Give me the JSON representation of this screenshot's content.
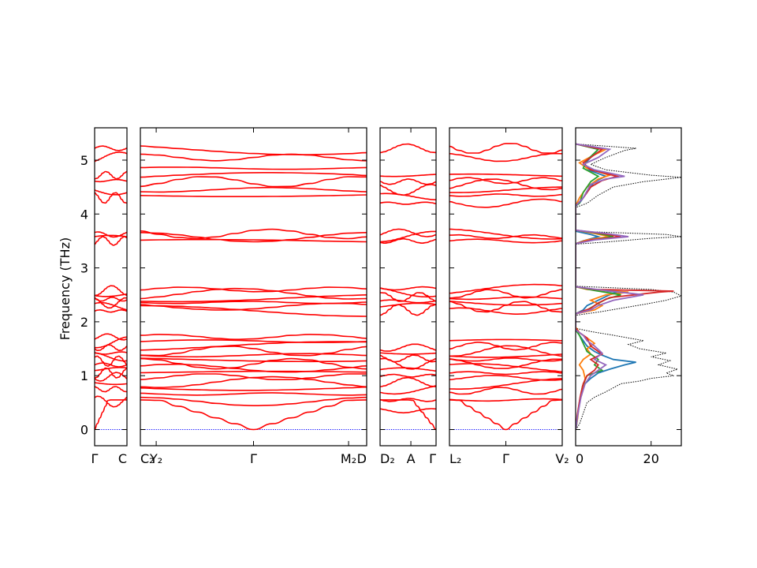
{
  "chart_data": {
    "type": "line",
    "ylabel": "Frequency (THz)",
    "ylim": [
      -0.3,
      5.6
    ],
    "yticks": [
      0,
      1,
      2,
      3,
      4,
      5
    ],
    "band_color": "#ff0000",
    "zero_line_color": "#0000ff",
    "segments": [
      {
        "labels": [
          "Γ",
          "C"
        ],
        "x_ticks": [
          0,
          1
        ],
        "band_levels": [
          0.0,
          0.52,
          0.75,
          0.86,
          0.98,
          1.05,
          1.12,
          1.2,
          1.27,
          1.35,
          1.42,
          1.52,
          1.62,
          1.72,
          2.2,
          2.28,
          2.35,
          2.42,
          2.5,
          2.58,
          3.5,
          3.58,
          3.62,
          4.3,
          4.42,
          4.62,
          4.72,
          5.05,
          5.22
        ]
      },
      {
        "labels": [
          "C₂",
          "Y₂",
          "Γ",
          "M₂",
          "D"
        ],
        "x_ticks": [
          0,
          0.07,
          0.5,
          0.92,
          1
        ],
        "band_levels": [
          0.0,
          0.52,
          0.66,
          0.78,
          0.88,
          0.98,
          1.06,
          1.14,
          1.22,
          1.3,
          1.38,
          1.46,
          1.55,
          1.64,
          1.72,
          2.2,
          2.28,
          2.36,
          2.44,
          2.52,
          2.6,
          3.5,
          3.57,
          3.63,
          4.35,
          4.45,
          4.6,
          4.7,
          4.85,
          5.05,
          5.2
        ]
      },
      {
        "labels": [
          "D₂",
          "A",
          "Γ"
        ],
        "x_ticks": [
          0,
          0.55,
          1
        ],
        "band_levels": [
          0.0,
          0.35,
          0.55,
          0.75,
          0.88,
          1.0,
          1.1,
          1.22,
          1.32,
          1.42,
          1.52,
          2.22,
          2.3,
          2.38,
          2.46,
          2.55,
          2.62,
          3.5,
          3.58,
          3.65,
          4.2,
          4.32,
          4.45,
          4.6,
          4.72,
          5.22
        ]
      },
      {
        "labels": [
          "L₂",
          "Γ",
          "V₂"
        ],
        "x_ticks": [
          0,
          0.5,
          1
        ],
        "band_levels": [
          0.0,
          0.55,
          0.72,
          0.85,
          0.96,
          1.05,
          1.14,
          1.22,
          1.3,
          1.38,
          1.46,
          1.55,
          1.65,
          2.2,
          2.28,
          2.36,
          2.44,
          2.52,
          2.6,
          3.5,
          3.58,
          3.63,
          4.2,
          4.35,
          4.45,
          4.55,
          4.62,
          4.72,
          5.05,
          5.22
        ]
      }
    ],
    "dos": {
      "xlim": [
        0,
        28
      ],
      "xticks": [
        0,
        20
      ],
      "series": [
        {
          "color": "#1f77b4",
          "points": [
            [
              0,
              0
            ],
            [
              0.3,
              0.1
            ],
            [
              0.6,
              0.3
            ],
            [
              1,
              0.5
            ],
            [
              1.5,
              0.7
            ],
            [
              2.5,
              0.85
            ],
            [
              4,
              0.95
            ],
            [
              6,
              1.05
            ],
            [
              9,
              1.12
            ],
            [
              13,
              1.2
            ],
            [
              16,
              1.25
            ],
            [
              10,
              1.3
            ],
            [
              7,
              1.38
            ],
            [
              5,
              1.45
            ],
            [
              3,
              1.55
            ],
            [
              2,
              1.65
            ],
            [
              1,
              1.75
            ],
            [
              0,
              1.85
            ],
            [
              0,
              2.15
            ],
            [
              2,
              2.22
            ],
            [
              3,
              2.3
            ],
            [
              6,
              2.4
            ],
            [
              9,
              2.5
            ],
            [
              11,
              2.55
            ],
            [
              4,
              2.6
            ],
            [
              0,
              2.65
            ],
            [
              0,
              3.45
            ],
            [
              2,
              3.5
            ],
            [
              6,
              3.58
            ],
            [
              4,
              3.62
            ],
            [
              0,
              3.68
            ],
            [
              0,
              4.15
            ],
            [
              1,
              4.2
            ],
            [
              3,
              4.4
            ],
            [
              5,
              4.6
            ],
            [
              8,
              4.7
            ],
            [
              4,
              4.8
            ],
            [
              2,
              4.9
            ],
            [
              4,
              5.05
            ],
            [
              6,
              5.2
            ],
            [
              0,
              5.3
            ]
          ]
        },
        {
          "color": "#ff7f0e",
          "points": [
            [
              0,
              0
            ],
            [
              0.5,
              0.2
            ],
            [
              1,
              0.5
            ],
            [
              2,
              0.75
            ],
            [
              2.5,
              0.95
            ],
            [
              2,
              1.1
            ],
            [
              1,
              1.2
            ],
            [
              2,
              1.3
            ],
            [
              4,
              1.4
            ],
            [
              3,
              1.5
            ],
            [
              5,
              1.6
            ],
            [
              3,
              1.7
            ],
            [
              1,
              1.8
            ],
            [
              0,
              1.9
            ],
            [
              0,
              2.15
            ],
            [
              5,
              2.22
            ],
            [
              7,
              2.3
            ],
            [
              4,
              2.4
            ],
            [
              8,
              2.5
            ],
            [
              14,
              2.55
            ],
            [
              3,
              2.6
            ],
            [
              0,
              2.65
            ],
            [
              0,
              3.45
            ],
            [
              3,
              3.52
            ],
            [
              9,
              3.58
            ],
            [
              5,
              3.64
            ],
            [
              0,
              3.7
            ],
            [
              0,
              4.15
            ],
            [
              1,
              4.3
            ],
            [
              3,
              4.5
            ],
            [
              6,
              4.65
            ],
            [
              9,
              4.72
            ],
            [
              3,
              4.85
            ],
            [
              1,
              4.95
            ],
            [
              5,
              5.1
            ],
            [
              8,
              5.2
            ],
            [
              0,
              5.3
            ]
          ]
        },
        {
          "color": "#2ca02c",
          "points": [
            [
              0,
              0
            ],
            [
              0.4,
              0.2
            ],
            [
              1,
              0.5
            ],
            [
              1.8,
              0.8
            ],
            [
              3,
              1.0
            ],
            [
              5,
              1.05
            ],
            [
              7,
              1.1
            ],
            [
              5,
              1.2
            ],
            [
              6,
              1.3
            ],
            [
              3,
              1.45
            ],
            [
              2,
              1.6
            ],
            [
              1,
              1.75
            ],
            [
              0,
              1.85
            ],
            [
              0,
              2.15
            ],
            [
              3,
              2.22
            ],
            [
              5,
              2.3
            ],
            [
              8,
              2.42
            ],
            [
              12,
              2.5
            ],
            [
              5,
              2.58
            ],
            [
              0,
              2.65
            ],
            [
              0,
              3.45
            ],
            [
              3,
              3.5
            ],
            [
              10,
              3.58
            ],
            [
              6,
              3.64
            ],
            [
              0,
              3.7
            ],
            [
              0,
              4.15
            ],
            [
              1,
              4.2
            ],
            [
              2,
              4.4
            ],
            [
              4,
              4.6
            ],
            [
              6,
              4.7
            ],
            [
              2,
              4.85
            ],
            [
              3,
              5.0
            ],
            [
              6,
              5.2
            ],
            [
              0,
              5.3
            ]
          ]
        },
        {
          "color": "#d62728",
          "points": [
            [
              0,
              0
            ],
            [
              0.4,
              0.25
            ],
            [
              1.2,
              0.6
            ],
            [
              2,
              0.85
            ],
            [
              3,
              1.0
            ],
            [
              5,
              1.1
            ],
            [
              6,
              1.2
            ],
            [
              4,
              1.3
            ],
            [
              7,
              1.4
            ],
            [
              4,
              1.55
            ],
            [
              3,
              1.7
            ],
            [
              1,
              1.8
            ],
            [
              0,
              1.88
            ],
            [
              0,
              2.15
            ],
            [
              4,
              2.25
            ],
            [
              6,
              2.35
            ],
            [
              9,
              2.45
            ],
            [
              22,
              2.55
            ],
            [
              26,
              2.57
            ],
            [
              5,
              2.6
            ],
            [
              0,
              2.65
            ],
            [
              0,
              3.45
            ],
            [
              4,
              3.52
            ],
            [
              12,
              3.58
            ],
            [
              7,
              3.64
            ],
            [
              0,
              3.7
            ],
            [
              0,
              4.15
            ],
            [
              2,
              4.3
            ],
            [
              4,
              4.5
            ],
            [
              7,
              4.62
            ],
            [
              11,
              4.7
            ],
            [
              4,
              4.82
            ],
            [
              2,
              4.95
            ],
            [
              5,
              5.1
            ],
            [
              7,
              5.2
            ],
            [
              0,
              5.3
            ]
          ]
        },
        {
          "color": "#9467bd",
          "points": [
            [
              0,
              0
            ],
            [
              0.5,
              0.25
            ],
            [
              1.4,
              0.6
            ],
            [
              2.5,
              0.85
            ],
            [
              4,
              1.0
            ],
            [
              6,
              1.1
            ],
            [
              8,
              1.2
            ],
            [
              5,
              1.3
            ],
            [
              7,
              1.42
            ],
            [
              5,
              1.55
            ],
            [
              3,
              1.65
            ],
            [
              2,
              1.75
            ],
            [
              0,
              1.85
            ],
            [
              0,
              2.15
            ],
            [
              4,
              2.22
            ],
            [
              6,
              2.3
            ],
            [
              10,
              2.4
            ],
            [
              18,
              2.5
            ],
            [
              8,
              2.58
            ],
            [
              0,
              2.65
            ],
            [
              0,
              3.45
            ],
            [
              5,
              3.52
            ],
            [
              14,
              3.58
            ],
            [
              8,
              3.64
            ],
            [
              0,
              3.7
            ],
            [
              0,
              4.15
            ],
            [
              2,
              4.3
            ],
            [
              4,
              4.55
            ],
            [
              8,
              4.65
            ],
            [
              13,
              4.7
            ],
            [
              5,
              4.82
            ],
            [
              2,
              4.92
            ],
            [
              6,
              5.05
            ],
            [
              9,
              5.2
            ],
            [
              0,
              5.3
            ]
          ]
        }
      ],
      "total": {
        "color": "#000000",
        "points": [
          [
            0,
            0
          ],
          [
            1,
            0.1
          ],
          [
            2,
            0.3
          ],
          [
            3,
            0.5
          ],
          [
            5,
            0.6
          ],
          [
            8,
            0.7
          ],
          [
            12,
            0.85
          ],
          [
            17,
            0.9
          ],
          [
            20,
            0.95
          ],
          [
            26,
            1.0
          ],
          [
            24,
            1.05
          ],
          [
            27,
            1.12
          ],
          [
            22,
            1.2
          ],
          [
            25,
            1.28
          ],
          [
            20,
            1.35
          ],
          [
            24,
            1.42
          ],
          [
            17,
            1.5
          ],
          [
            14,
            1.58
          ],
          [
            18,
            1.65
          ],
          [
            10,
            1.75
          ],
          [
            4,
            1.82
          ],
          [
            0,
            1.88
          ],
          [
            0,
            2.12
          ],
          [
            6,
            2.18
          ],
          [
            12,
            2.25
          ],
          [
            18,
            2.32
          ],
          [
            24,
            2.4
          ],
          [
            28,
            2.48
          ],
          [
            26,
            2.55
          ],
          [
            20,
            2.6
          ],
          [
            0,
            2.66
          ],
          [
            0,
            3.44
          ],
          [
            8,
            3.48
          ],
          [
            20,
            3.55
          ],
          [
            28,
            3.58
          ],
          [
            24,
            3.62
          ],
          [
            0,
            3.68
          ],
          [
            0,
            4.12
          ],
          [
            3,
            4.2
          ],
          [
            6,
            4.35
          ],
          [
            10,
            4.5
          ],
          [
            18,
            4.6
          ],
          [
            28,
            4.68
          ],
          [
            20,
            4.72
          ],
          [
            8,
            4.82
          ],
          [
            4,
            4.92
          ],
          [
            8,
            5.05
          ],
          [
            13,
            5.18
          ],
          [
            16,
            5.22
          ],
          [
            0,
            5.3
          ]
        ]
      }
    }
  }
}
